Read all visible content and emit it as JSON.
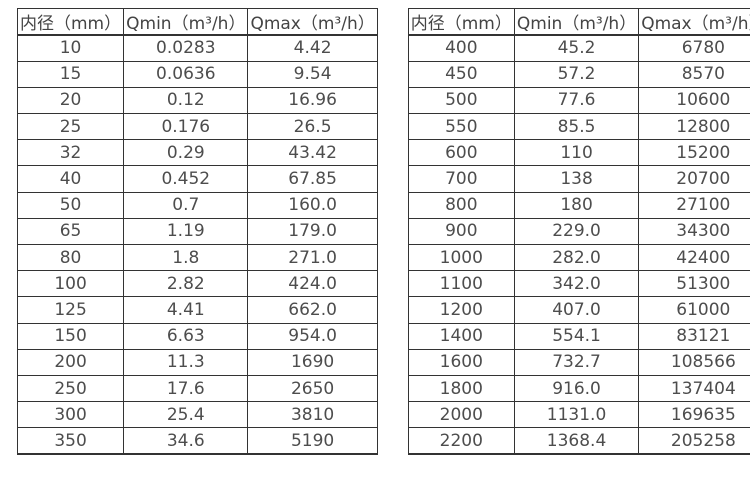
{
  "page": {
    "background_color": "#ffffff",
    "border_color": "#333333",
    "text_color": "#4d4d4d"
  },
  "tables": [
    {
      "name": "flow-rate-table-small-diameters",
      "headers": [
        "内径（mm）",
        "Qmin（m³/h）",
        "Qmax（m³/h）"
      ],
      "rows": [
        [
          "10",
          "0.0283",
          "4.42"
        ],
        [
          "15",
          "0.0636",
          "9.54"
        ],
        [
          "20",
          "0.12",
          "16.96"
        ],
        [
          "25",
          "0.176",
          "26.5"
        ],
        [
          "32",
          "0.29",
          "43.42"
        ],
        [
          "40",
          "0.452",
          "67.85"
        ],
        [
          "50",
          "0.7",
          "160.0"
        ],
        [
          "65",
          "1.19",
          "179.0"
        ],
        [
          "80",
          "1.8",
          "271.0"
        ],
        [
          "100",
          "2.82",
          "424.0"
        ],
        [
          "125",
          "4.41",
          "662.0"
        ],
        [
          "150",
          "6.63",
          "954.0"
        ],
        [
          "200",
          "11.3",
          "1690"
        ],
        [
          "250",
          "17.6",
          "2650"
        ],
        [
          "300",
          "25.4",
          "3810"
        ],
        [
          "350",
          "34.6",
          "5190"
        ]
      ]
    },
    {
      "name": "flow-rate-table-large-diameters",
      "headers": [
        "内径（mm）",
        "Qmin（m³/h）",
        "Qmax（m³/h）"
      ],
      "rows": [
        [
          "400",
          "45.2",
          "6780"
        ],
        [
          "450",
          "57.2",
          "8570"
        ],
        [
          "500",
          "77.6",
          "10600"
        ],
        [
          "550",
          "85.5",
          "12800"
        ],
        [
          "600",
          "110",
          "15200"
        ],
        [
          "700",
          "138",
          "20700"
        ],
        [
          "800",
          "180",
          "27100"
        ],
        [
          "900",
          "229.0",
          "34300"
        ],
        [
          "1000",
          "282.0",
          "42400"
        ],
        [
          "1100",
          "342.0",
          "51300"
        ],
        [
          "1200",
          "407.0",
          "61000"
        ],
        [
          "1400",
          "554.1",
          "83121"
        ],
        [
          "1600",
          "732.7",
          "108566"
        ],
        [
          "1800",
          "916.0",
          "137404"
        ],
        [
          "2000",
          "1131.0",
          "169635"
        ],
        [
          "2200",
          "1368.4",
          "205258"
        ]
      ]
    }
  ]
}
